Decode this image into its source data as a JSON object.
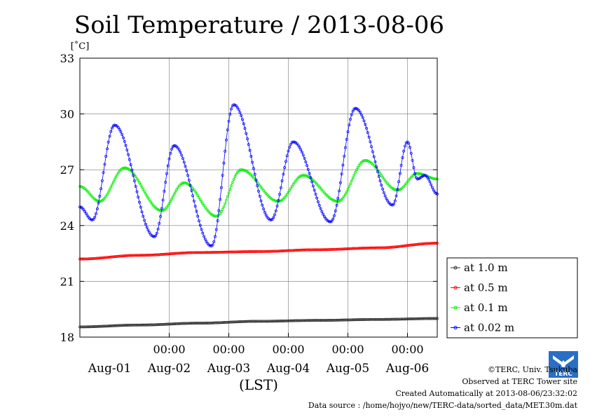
{
  "chart_data": {
    "type": "line",
    "title": "Soil Temperature / 2013-08-06",
    "ylabel_unit": "[˚C]",
    "xlabel": "(LST)",
    "ylim": [
      18,
      33
    ],
    "yticks": [
      18,
      21,
      24,
      27,
      30,
      33
    ],
    "xlim_hours": [
      0,
      144
    ],
    "hour_ticks": [
      {
        "hour": 36,
        "label": "00:00"
      },
      {
        "hour": 60,
        "label": "00:00"
      },
      {
        "hour": 84,
        "label": "00:00"
      },
      {
        "hour": 108,
        "label": "00:00"
      },
      {
        "hour": 132,
        "label": "00:00"
      }
    ],
    "day_labels": [
      {
        "hour": 12,
        "label": "Aug-01"
      },
      {
        "hour": 36,
        "label": "Aug-02"
      },
      {
        "hour": 60,
        "label": "Aug-03"
      },
      {
        "hour": 84,
        "label": "Aug-04"
      },
      {
        "hour": 108,
        "label": "Aug-05"
      },
      {
        "hour": 132,
        "label": "Aug-06"
      }
    ],
    "grid": true,
    "legend_position": "right",
    "series": [
      {
        "name": "at 1.0 m",
        "color": "#333333",
        "x": [
          0,
          24,
          48,
          72,
          96,
          120,
          144
        ],
        "y": [
          18.55,
          18.65,
          18.75,
          18.85,
          18.9,
          18.95,
          19.0
        ]
      },
      {
        "name": "at 0.5 m",
        "color": "#ff0000",
        "x": [
          0,
          24,
          48,
          72,
          96,
          120,
          144
        ],
        "y": [
          22.2,
          22.4,
          22.55,
          22.6,
          22.7,
          22.8,
          23.05
        ]
      },
      {
        "name": "at 0.1 m",
        "color": "#00ee00",
        "x": [
          0,
          8,
          18,
          33,
          42,
          55,
          65,
          80,
          90,
          104,
          115,
          128,
          136,
          144
        ],
        "y": [
          26.1,
          25.3,
          27.1,
          24.8,
          26.3,
          24.5,
          27.0,
          25.3,
          26.7,
          25.3,
          27.5,
          25.9,
          26.8,
          26.5
        ]
      },
      {
        "name": "at 0.02 m",
        "color": "#0000ff",
        "x": [
          0,
          5,
          14,
          30,
          38,
          53,
          62,
          77,
          86,
          101,
          111,
          126,
          132,
          136,
          139,
          144
        ],
        "y": [
          25.0,
          24.3,
          29.4,
          23.4,
          28.3,
          22.9,
          30.5,
          24.3,
          28.5,
          24.2,
          30.3,
          25.1,
          28.5,
          26.5,
          26.7,
          25.7
        ]
      }
    ]
  },
  "credits": {
    "copyright": "©TERC, Univ. Tsukuba",
    "observed": "Observed at TERC Tower site",
    "created": "Created Automatically at 2013-08-06/23:32:02",
    "source": "Data source : /home/hojyo/new/TERC-data/sorted_data/MET.30m.dat"
  },
  "logo": {
    "text": "TERC",
    "color": "#2a6fc4"
  }
}
